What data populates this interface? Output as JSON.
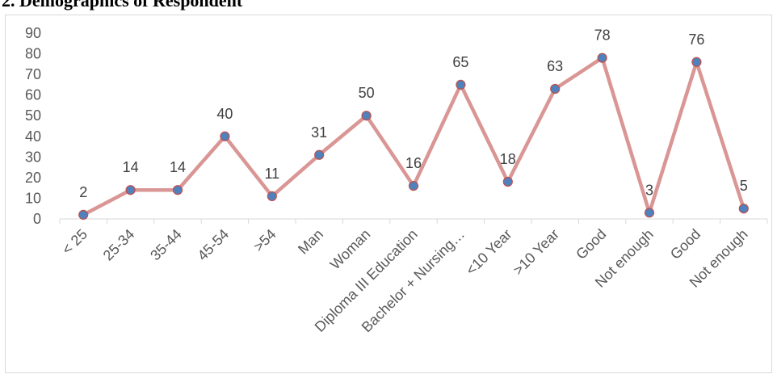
{
  "title": "2. Demographics of Respondent",
  "colors": {
    "line": "#d99694",
    "marker_fill": "#4f81bd",
    "marker_stroke": "#c0504d",
    "axis": "#d9d9d9",
    "text": "#595959"
  },
  "chart_data": {
    "type": "line",
    "categories": [
      "< 25",
      "25-34",
      "35-44",
      "45-54",
      ">54",
      "Man",
      "Woman",
      "Diploma III Education",
      "Bachelor + Nursing…",
      "<10 Year",
      ">10 Year",
      "Good",
      "Not enough",
      "Good",
      "Not enough"
    ],
    "series": [
      {
        "values": [
          2,
          14,
          14,
          40,
          11,
          31,
          50,
          16,
          65,
          18,
          63,
          78,
          3,
          76,
          5
        ]
      }
    ],
    "y_ticks": [
      0,
      10,
      20,
      30,
      40,
      50,
      60,
      70,
      80,
      90
    ],
    "ylim": [
      0,
      90
    ],
    "xlabel": "",
    "ylabel": "",
    "grid": false,
    "data_labels": true,
    "legend": "none"
  }
}
